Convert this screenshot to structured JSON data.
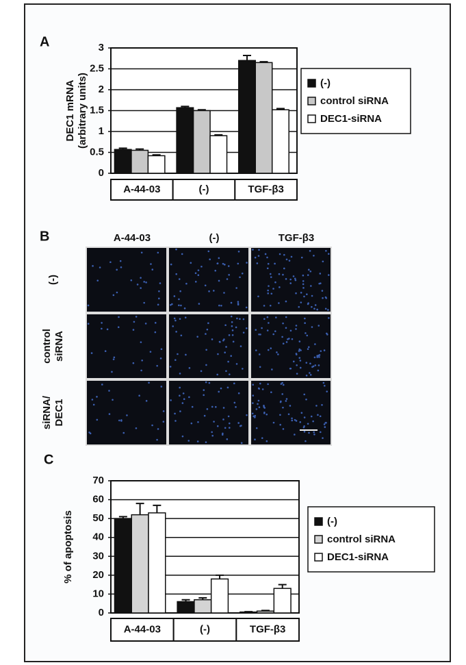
{
  "chart_data": [
    {
      "type": "bar",
      "panel_label": "A",
      "ylabel": [
        "DEC1 mRNA",
        "(arbitrary units)"
      ],
      "categories": [
        "A-44-03",
        "(-)",
        "TGF-β3"
      ],
      "series": [
        {
          "name": "(-)",
          "color": "#111111",
          "values": [
            0.57,
            1.57,
            2.7
          ],
          "errors": [
            0.03,
            0.03,
            0.12
          ]
        },
        {
          "name": "control siRNA",
          "color": "#c8c8c8",
          "values": [
            0.55,
            1.5,
            2.65
          ],
          "errors": [
            0.03,
            0.02,
            0.02
          ]
        },
        {
          "name": "DEC1-siRNA",
          "color": "#ffffff",
          "values": [
            0.42,
            0.9,
            1.52
          ],
          "errors": [
            0.02,
            0.02,
            0.03
          ]
        }
      ],
      "ylim": [
        0,
        3
      ],
      "yticks": [
        0,
        0.5,
        1,
        1.5,
        2,
        2.5,
        3
      ],
      "grid": true
    },
    {
      "type": "bar",
      "panel_label": "C",
      "ylabel": [
        "% of apoptosis"
      ],
      "categories": [
        "A-44-03",
        "(-)",
        "TGF-β3"
      ],
      "series": [
        {
          "name": "(-)",
          "color": "#111111",
          "values": [
            50,
            6,
            0.5
          ],
          "errors": [
            1,
            1,
            0.2
          ]
        },
        {
          "name": "control siRNA",
          "color": "#d4d4d4",
          "values": [
            52,
            7,
            1
          ],
          "errors": [
            6,
            1,
            0.3
          ]
        },
        {
          "name": "DEC1-siRNA",
          "color": "#ffffff",
          "values": [
            53,
            18,
            13
          ],
          "errors": [
            4,
            2,
            2
          ]
        }
      ],
      "ylim": [
        0,
        70
      ],
      "yticks": [
        0,
        10,
        20,
        30,
        40,
        50,
        60,
        70
      ],
      "grid": true
    }
  ],
  "micrographs": {
    "panel_label": "B",
    "columns": [
      "A-44-03",
      "(-)",
      "TGF-β3"
    ],
    "rows": [
      [
        "(-)"
      ],
      [
        "control",
        "siRNA"
      ],
      [
        "siRNA/",
        "DEC1"
      ]
    ]
  }
}
